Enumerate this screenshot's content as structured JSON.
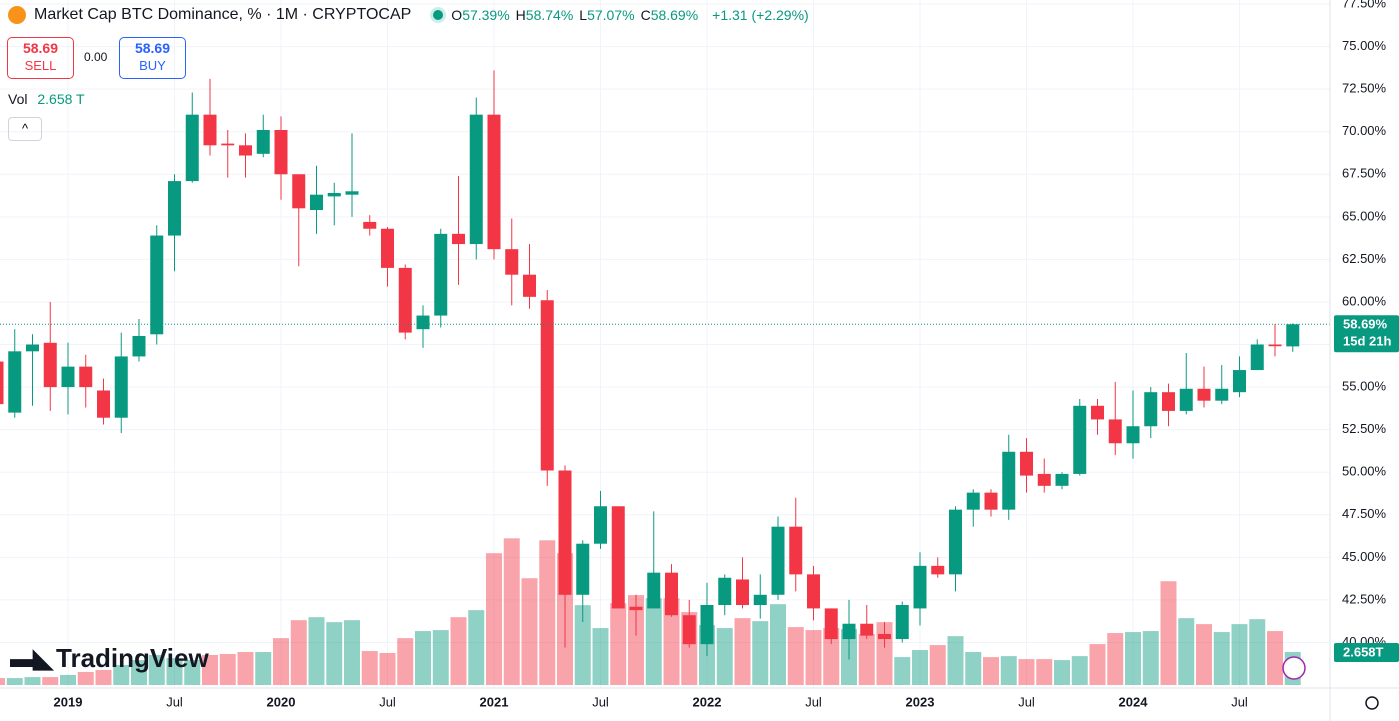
{
  "chart_data": {
    "type": "candlestick",
    "title": "Market Cap BTC Dominance, % · 1M · CRYPTOCAP",
    "legend": [
      {
        "key": "O",
        "value": "57.39%"
      },
      {
        "key": "H",
        "value": "58.74%"
      },
      {
        "key": "L",
        "value": "57.07%"
      },
      {
        "key": "C",
        "value": "58.69%"
      }
    ],
    "change": "+1.31 (+2.29%)",
    "sell_price": "58.69",
    "sell": "SELL",
    "spread": "0.00",
    "buy_price": "58.69",
    "buy": "BUY",
    "vol_label": "Vol",
    "vol_value": "2.658 T",
    "logo": "TradingView",
    "last_price_label": "58.69%",
    "countdown": "15d 21h",
    "volume_tag": "2.658T",
    "up_color": "#089981",
    "down_color": "#f23645",
    "categories": [
      null,
      null,
      null,
      null,
      "2019",
      null,
      null,
      null,
      null,
      null,
      "Jul",
      null,
      null,
      null,
      null,
      null,
      "2020",
      null,
      null,
      null,
      null,
      null,
      "Jul",
      null,
      null,
      null,
      null,
      null,
      "2021",
      null,
      null,
      null,
      null,
      null,
      "Jul",
      null,
      null,
      null,
      null,
      null,
      "2022",
      null,
      null,
      null,
      null,
      null,
      "Jul",
      null,
      null,
      null,
      null,
      null,
      "2023",
      null,
      null,
      null,
      null,
      null,
      "Jul",
      null,
      null,
      null,
      null,
      null,
      "2024",
      null,
      null,
      null,
      null,
      null,
      "Jul",
      null,
      null,
      null
    ],
    "open": [
      56.5,
      53.5,
      57.1,
      57.6,
      55.0,
      56.2,
      54.8,
      53.2,
      56.8,
      58.1,
      63.9,
      67.1,
      71.0,
      69.3,
      69.2,
      68.7,
      70.1,
      67.5,
      65.4,
      66.2,
      66.3,
      64.7,
      64.3,
      62.0,
      58.4,
      59.2,
      64.0,
      63.4,
      71.0,
      63.1,
      61.6,
      60.1,
      50.1,
      42.8,
      45.8,
      48.0,
      42.1,
      42.0,
      44.1,
      41.6,
      39.9,
      42.2,
      43.7,
      42.2,
      42.8,
      46.8,
      44.0,
      42.0,
      40.2,
      41.1,
      40.5,
      40.2,
      42.0,
      44.5,
      44.0,
      47.8,
      48.8,
      47.8,
      51.2,
      49.9,
      49.2,
      49.9,
      53.9,
      53.1,
      51.7,
      52.7,
      54.7,
      53.6,
      54.9,
      54.2,
      54.7,
      56.0,
      57.5,
      57.39
    ],
    "high": [
      57.0,
      58.4,
      58.1,
      60.0,
      57.6,
      56.9,
      55.5,
      58.2,
      59.0,
      64.5,
      67.5,
      72.3,
      73.1,
      70.1,
      69.9,
      71.0,
      70.9,
      67.5,
      68.0,
      67.0,
      69.9,
      65.1,
      64.4,
      62.2,
      59.8,
      64.3,
      67.4,
      72.0,
      73.6,
      64.9,
      63.4,
      60.7,
      50.4,
      46.0,
      48.9,
      48.0,
      42.8,
      47.7,
      44.6,
      42.5,
      43.5,
      44.0,
      45.0,
      44.0,
      47.4,
      48.5,
      44.5,
      42.0,
      42.5,
      42.2,
      41.2,
      42.4,
      45.3,
      45.0,
      48.0,
      49.0,
      49.0,
      52.2,
      52.0,
      50.8,
      50.0,
      54.3,
      54.3,
      55.3,
      54.8,
      55.0,
      55.2,
      57.0,
      56.2,
      56.3,
      56.8,
      57.8,
      58.7,
      58.74
    ],
    "low": [
      53.5,
      53.2,
      53.9,
      53.6,
      53.4,
      53.8,
      52.8,
      52.3,
      56.5,
      57.5,
      61.8,
      67.0,
      68.6,
      67.3,
      67.3,
      68.5,
      66.0,
      62.1,
      64.0,
      64.5,
      65.0,
      63.9,
      60.9,
      57.8,
      57.3,
      58.5,
      61.0,
      62.5,
      62.5,
      59.8,
      59.6,
      49.2,
      39.7,
      41.2,
      45.5,
      42.0,
      40.4,
      42.0,
      41.5,
      39.7,
      39.2,
      41.6,
      42.0,
      41.4,
      42.5,
      43.0,
      41.3,
      39.9,
      39.0,
      40.2,
      39.7,
      40.0,
      41.0,
      43.8,
      43.0,
      46.8,
      47.4,
      47.2,
      48.8,
      48.8,
      49.0,
      49.8,
      52.2,
      51.0,
      50.8,
      52.0,
      52.7,
      53.4,
      53.8,
      54.0,
      54.4,
      56.0,
      56.8,
      57.07
    ],
    "close": [
      54.0,
      57.1,
      57.5,
      55.0,
      56.2,
      55.0,
      53.2,
      56.8,
      58.0,
      63.9,
      67.1,
      71.0,
      69.2,
      69.2,
      68.6,
      70.1,
      67.5,
      65.5,
      66.3,
      66.4,
      66.5,
      64.3,
      62.0,
      58.2,
      59.2,
      64.0,
      63.4,
      71.0,
      63.1,
      61.6,
      60.3,
      50.1,
      42.8,
      45.8,
      48.0,
      42.0,
      41.9,
      44.1,
      41.6,
      39.9,
      42.2,
      43.8,
      42.2,
      42.8,
      46.8,
      44.0,
      42.0,
      40.2,
      41.1,
      40.4,
      40.2,
      42.2,
      44.5,
      44.0,
      47.8,
      48.8,
      47.8,
      51.2,
      49.8,
      49.2,
      49.9,
      53.9,
      53.1,
      51.7,
      52.7,
      54.7,
      53.6,
      54.9,
      54.2,
      54.9,
      56.0,
      57.5,
      57.4,
      58.69
    ],
    "volume": [
      0.56,
      0.56,
      0.64,
      0.64,
      0.81,
      1.05,
      1.21,
      1.61,
      2.01,
      2.42,
      2.17,
      2.01,
      2.42,
      2.5,
      2.66,
      2.66,
      3.78,
      5.23,
      5.47,
      5.07,
      5.23,
      2.74,
      2.58,
      3.78,
      4.35,
      4.43,
      5.47,
      6.04,
      10.63,
      11.83,
      8.61,
      11.67,
      10.63,
      6.44,
      4.59,
      6.6,
      7.25,
      7.0,
      7.0,
      5.88,
      4.83,
      4.59,
      5.39,
      5.15,
      6.52,
      4.67,
      4.43,
      4.59,
      4.51,
      4.11,
      5.07,
      2.25,
      2.82,
      3.22,
      3.94,
      2.66,
      2.25,
      2.33,
      2.09,
      2.09,
      2.01,
      2.33,
      3.3,
      4.19,
      4.27,
      4.35,
      8.37,
      5.39,
      4.91,
      4.27,
      4.91,
      5.31,
      4.35,
      2.658
    ],
    "vlim": [
      0,
      20
    ],
    "ylim": [
      38.5,
      77.5
    ],
    "yticks": [
      {
        "value": 40,
        "label": "40.00%"
      },
      {
        "value": 42.5,
        "label": "42.50%"
      },
      {
        "value": 45,
        "label": "45.00%"
      },
      {
        "value": 47.5,
        "label": "47.50%"
      },
      {
        "value": 50,
        "label": "50.00%"
      },
      {
        "value": 52.5,
        "label": "52.50%"
      },
      {
        "value": 55,
        "label": "55.00%"
      },
      {
        "value": 57.5,
        "label": "57.50%"
      },
      {
        "value": 60,
        "label": "60.00%"
      },
      {
        "value": 62.5,
        "label": "62.50%"
      },
      {
        "value": 65,
        "label": "65.00%"
      },
      {
        "value": 67.5,
        "label": "67.50%"
      },
      {
        "value": 70,
        "label": "70.00%"
      },
      {
        "value": 72.5,
        "label": "72.50%"
      },
      {
        "value": 75,
        "label": "75.00%"
      },
      {
        "value": 77.5,
        "label": "77.50%"
      }
    ]
  }
}
